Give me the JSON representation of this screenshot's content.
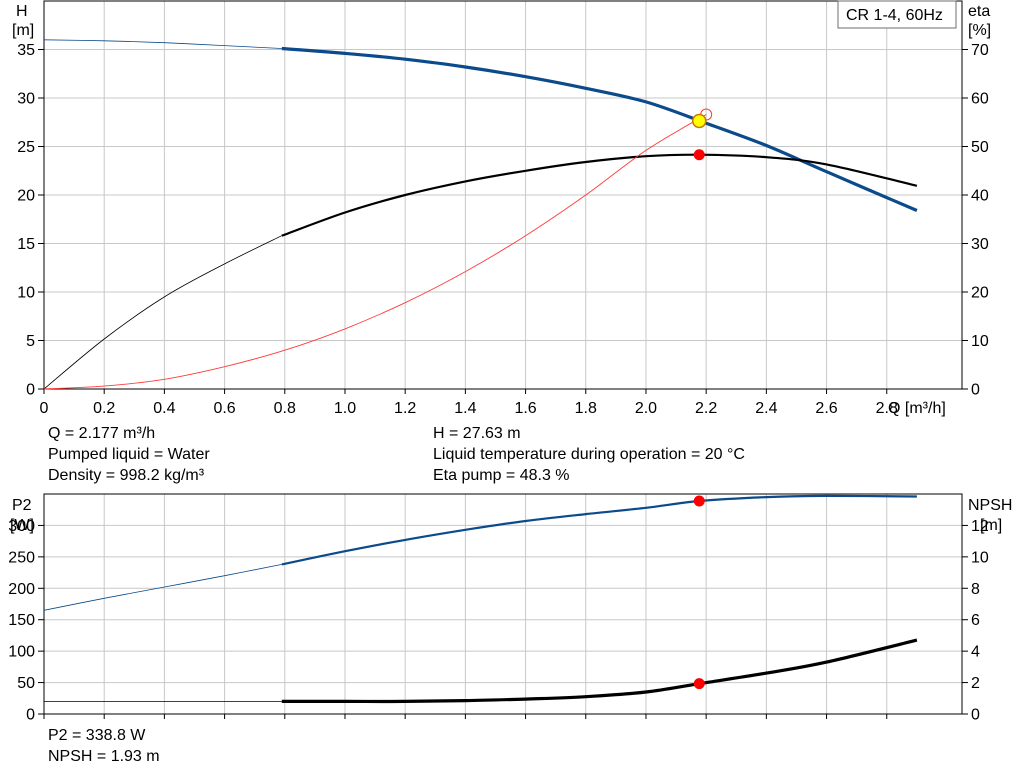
{
  "legend_label": "CR 1-4, 60Hz",
  "top": {
    "axis_left": {
      "name": "H",
      "unit": "[m]"
    },
    "axis_right": {
      "name": "eta",
      "unit": "[%]"
    },
    "x_axis_label": "Q [m³/h]",
    "info_left": [
      "Q = 2.177 m³/h",
      "Pumped liquid = Water",
      "Density = 998.2 kg/m³"
    ],
    "info_right": [
      "H = 27.63 m",
      "Liquid temperature during operation = 20 °C",
      "Eta pump = 48.3 %"
    ]
  },
  "bottom": {
    "axis_left": {
      "name": "P2",
      "unit": "[W]"
    },
    "axis_right": {
      "name": "NPSH",
      "unit": "[m]"
    },
    "info_left": [
      "P2 = 338.8 W",
      "NPSH = 1.93 m"
    ]
  },
  "colors": {
    "head": "#0b4a8b",
    "eta": "#000000",
    "p2": "#0b4a8b",
    "npsh": "#000000",
    "system": "#ff3b3b",
    "operating_point": "#ff0000",
    "duty_marker": "#ffff00",
    "grid": "#c8c8c8"
  },
  "chart_data": [
    {
      "type": "line",
      "xlabel": "Q [m³/h]",
      "ylabel": "H [m]",
      "y2label": "eta [%]",
      "xlim": [
        0,
        3.05
      ],
      "ylim": [
        0,
        40
      ],
      "y2lim": [
        0,
        80
      ],
      "x_ticks": [
        0,
        0.2,
        0.4,
        0.6,
        0.8,
        1.0,
        1.2,
        1.4,
        1.6,
        1.8,
        2.0,
        2.2,
        2.4,
        2.6,
        2.8
      ],
      "y_ticks": [
        0,
        5,
        10,
        15,
        20,
        25,
        30,
        35
      ],
      "y2_ticks": [
        0,
        10,
        20,
        30,
        40,
        50,
        60,
        70
      ],
      "grid": true,
      "legend": "top-right",
      "allowed_range_start": 0.79,
      "series": [
        {
          "axis": "left",
          "role": "head",
          "x": [
            0,
            0.2,
            0.4,
            0.6,
            0.79,
            1.0,
            1.2,
            1.4,
            1.6,
            1.8,
            2.0,
            2.2,
            2.4,
            2.6,
            2.9
          ],
          "values": [
            36.0,
            35.9,
            35.7,
            35.4,
            35.1,
            34.6,
            34.0,
            33.2,
            32.2,
            31.0,
            29.6,
            27.4,
            25.1,
            22.4,
            18.4
          ]
        },
        {
          "axis": "right",
          "role": "eta",
          "x": [
            0,
            0.2,
            0.4,
            0.6,
            0.79,
            1.0,
            1.2,
            1.4,
            1.6,
            1.8,
            2.0,
            2.177,
            2.4,
            2.6,
            2.9
          ],
          "values": [
            0,
            10.3,
            19.0,
            25.8,
            31.6,
            36.4,
            40.0,
            42.8,
            45.0,
            46.8,
            48.0,
            48.3,
            47.8,
            46.3,
            41.9
          ]
        },
        {
          "axis": "left",
          "role": "system",
          "x": [
            0,
            0.2,
            0.4,
            0.6,
            0.8,
            1.0,
            1.2,
            1.4,
            1.6,
            1.8,
            2.0,
            2.2
          ],
          "values": [
            0,
            0.3,
            1.0,
            2.3,
            4.0,
            6.2,
            8.9,
            12.1,
            15.8,
            20.0,
            24.6,
            28.3
          ]
        }
      ],
      "operating_point": {
        "x": 2.177,
        "head": 27.63,
        "eta": 48.3
      }
    },
    {
      "type": "line",
      "xlim": [
        0,
        3.05
      ],
      "ylim": [
        0,
        350
      ],
      "y2lim": [
        0,
        14
      ],
      "y_ticks": [
        0,
        50,
        100,
        150,
        200,
        250,
        300
      ],
      "y2_ticks": [
        0,
        2,
        4,
        6,
        8,
        10,
        12
      ],
      "grid": true,
      "series": [
        {
          "axis": "left",
          "role": "p2",
          "x": [
            0,
            0.2,
            0.4,
            0.6,
            0.79,
            1.0,
            1.2,
            1.4,
            1.6,
            1.8,
            2.0,
            2.177,
            2.4,
            2.6,
            2.9
          ],
          "values": [
            165,
            184,
            202,
            220,
            238,
            259,
            277,
            293,
            307,
            318,
            328,
            338.8,
            345,
            347,
            346
          ]
        },
        {
          "axis": "right",
          "role": "npsh",
          "x": [
            0,
            0.2,
            0.4,
            0.6,
            0.79,
            1.0,
            1.2,
            1.4,
            1.6,
            1.8,
            2.0,
            2.177,
            2.4,
            2.6,
            2.9
          ],
          "values": [
            0.8,
            0.8,
            0.8,
            0.8,
            0.8,
            0.8,
            0.8,
            0.85,
            0.95,
            1.1,
            1.4,
            1.93,
            2.6,
            3.3,
            4.7
          ]
        }
      ],
      "operating_point": {
        "x": 2.177,
        "p2": 338.8,
        "npsh": 1.93
      }
    }
  ]
}
